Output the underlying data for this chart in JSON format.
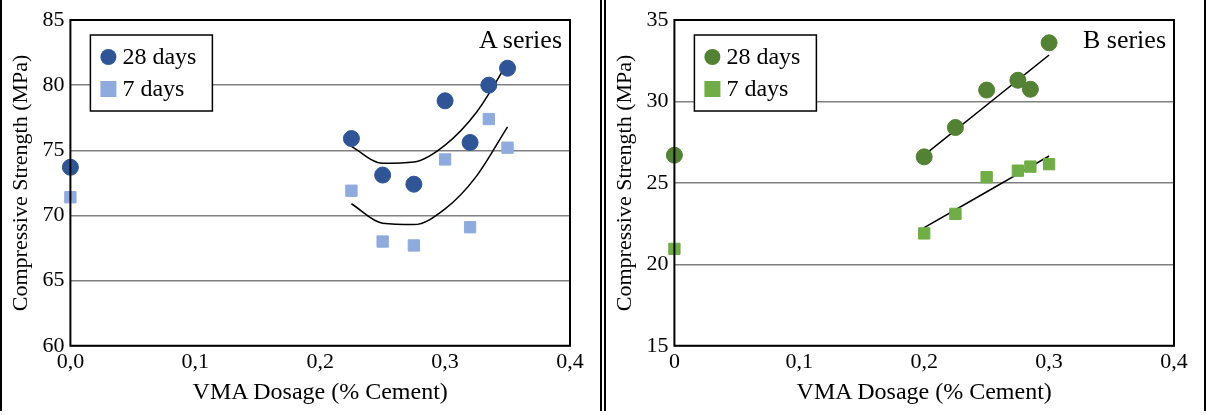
{
  "chart_data": [
    {
      "type": "scatter",
      "xlabel": "VMA Dosage (% Cement)",
      "ylabel": "Compressive Strength (MPa)",
      "xlim": [
        0,
        0.4
      ],
      "xticks": [
        {
          "value": 0,
          "label": "0,0"
        },
        {
          "value": 0.1,
          "label": "0,1"
        },
        {
          "value": 0.2,
          "label": "0,2"
        },
        {
          "value": 0.3,
          "label": "0,3"
        },
        {
          "value": 0.4,
          "label": "0,4"
        }
      ],
      "ylim": [
        60,
        85
      ],
      "yticks": [
        60,
        65,
        70,
        75,
        80,
        85
      ],
      "grid": "y",
      "legend": "top left",
      "annotations": [
        "A series"
      ],
      "series": [
        {
          "name": "28 days",
          "color": "#2f5597",
          "marker": "circle",
          "x": [
            0,
            0.225,
            0.25,
            0.275,
            0.3,
            0.32,
            0.335,
            0.35
          ],
          "values": [
            73.7,
            75.9,
            73.1,
            72.4,
            78.8,
            75.6,
            80,
            81.3
          ]
        },
        {
          "name": "7 days",
          "color": "#8faadc",
          "marker": "square",
          "x": [
            0,
            0.225,
            0.25,
            0.275,
            0.3,
            0.32,
            0.335,
            0.35
          ],
          "values": [
            71.4,
            71.9,
            68,
            67.7,
            74.3,
            69.1,
            77.4,
            75.2
          ]
        },
        {
          "type": "line",
          "color": "#000000",
          "marker": "none",
          "x": [
            0.225,
            0.25,
            0.275,
            0.3,
            0.325,
            0.35
          ],
          "values": [
            75.3,
            74,
            74.1,
            75.4,
            77.9,
            81.7
          ]
        },
        {
          "type": "line",
          "color": "#000000",
          "marker": "none",
          "x": [
            0.225,
            0.25,
            0.275,
            0.3,
            0.325,
            0.35
          ],
          "values": [
            70.9,
            69.4,
            69.3,
            70.5,
            73,
            76.8
          ]
        }
      ]
    },
    {
      "type": "scatter",
      "xlabel": "VMA Dosage (% Cement)",
      "ylabel": "Compressive Strength (MPa)",
      "xlim": [
        0,
        0.4
      ],
      "xticks": [
        0,
        {
          "value": 0.1,
          "label": "0,1"
        },
        {
          "value": 0.2,
          "label": "0,2"
        },
        {
          "value": 0.3,
          "label": "0,3"
        },
        {
          "value": 0.4,
          "label": "0,4"
        }
      ],
      "ylim": [
        15,
        35
      ],
      "yticks": [
        15,
        20,
        25,
        30,
        35
      ],
      "grid": "y",
      "legend": "top left",
      "annotations": [
        "B series"
      ],
      "series": [
        {
          "name": "28 days",
          "color": "#548235",
          "marker": "circle",
          "x": [
            0,
            0.2,
            0.225,
            0.25,
            0.275,
            0.285,
            0.3
          ],
          "values": [
            26.7,
            26.6,
            28.4,
            30.7,
            31.3,
            30.75,
            33.6
          ]
        },
        {
          "name": "7 days",
          "color": "#70ad47",
          "marker": "square",
          "x": [
            0,
            0.2,
            0.225,
            0.25,
            0.275,
            0.285,
            0.3
          ],
          "values": [
            20.95,
            21.9,
            23.1,
            25.35,
            25.75,
            26,
            26.15
          ]
        },
        {
          "type": "line",
          "color": "#000000",
          "marker": "none",
          "x": [
            0.2,
            0.3
          ],
          "values": [
            26.7,
            32.85
          ]
        },
        {
          "type": "line",
          "color": "#000000",
          "marker": "none",
          "x": [
            0.2,
            0.3
          ],
          "values": [
            22.25,
            26.65
          ]
        }
      ]
    }
  ]
}
